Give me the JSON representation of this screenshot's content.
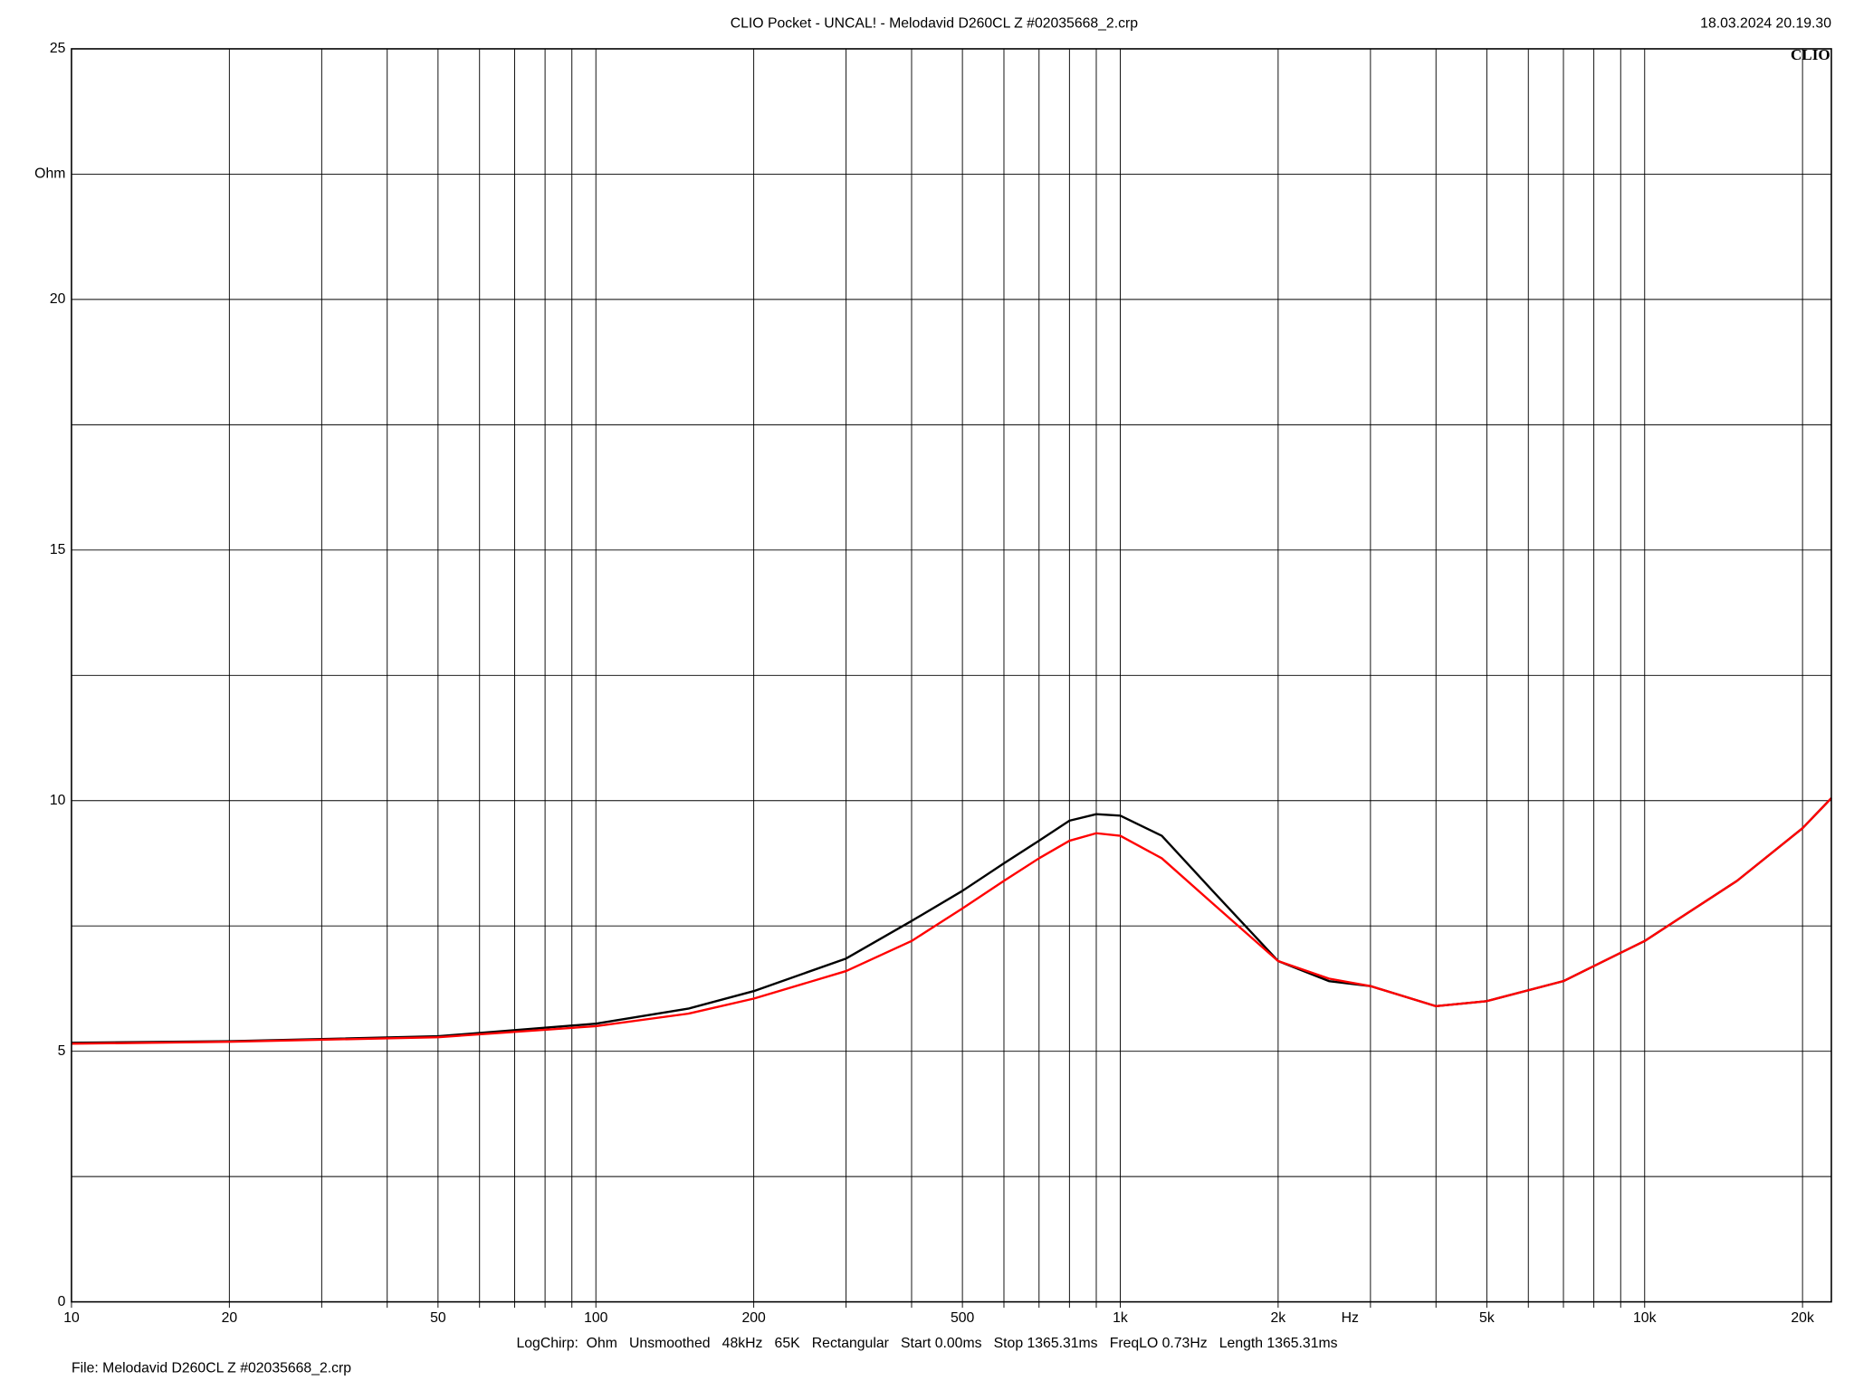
{
  "chart_data": {
    "type": "line",
    "title": "CLIO Pocket - UNCAL! - Melodavid D260CL Z #02035668_2.crp",
    "timestamp": "18.03.2024 20.19.30",
    "logo": "CLIO",
    "y_label": "Ohm",
    "x_label": "Hz",
    "settings_line": "LogChirp:  Ohm   Unsmoothed   48kHz   65K   Rectangular   Start 0.00ms   Stop 1365.31ms   FreqLO 0.73Hz   Length 1365.31ms",
    "file_line": "File: Melodavid D260CL Z #02035668_2.crp",
    "x_log": true,
    "grid": true,
    "xlim": [
      10,
      22700
    ],
    "ylim": [
      0,
      25
    ],
    "xticks": [
      10,
      20,
      50,
      100,
      200,
      500,
      {
        "value": 1000,
        "label": "1k"
      },
      {
        "value": 2000,
        "label": "2k"
      },
      {
        "value": 5000,
        "label": "5k"
      },
      {
        "value": 10000,
        "label": "10k"
      },
      {
        "value": 20000,
        "label": "20k"
      }
    ],
    "minor_xticks": [
      30,
      40,
      60,
      70,
      80,
      90,
      300,
      400,
      600,
      700,
      800,
      900,
      3000,
      4000,
      6000,
      7000,
      8000,
      9000
    ],
    "yticks": [
      0,
      5,
      10,
      15,
      20,
      25
    ],
    "minor_yticks": [
      2.5,
      7.5,
      12.5,
      17.5,
      22.5
    ],
    "x": [
      10,
      20,
      50,
      100,
      150,
      200,
      300,
      400,
      500,
      600,
      700,
      800,
      900,
      1000,
      1200,
      1500,
      2000,
      2500,
      3000,
      4000,
      5000,
      7000,
      10000,
      15000,
      20000,
      22700
    ],
    "series": [
      {
        "color": "#000000",
        "values": [
          5.17,
          5.2,
          5.3,
          5.55,
          5.85,
          6.2,
          6.85,
          7.6,
          8.2,
          8.75,
          9.2,
          9.6,
          9.73,
          9.7,
          9.3,
          8.2,
          6.8,
          6.4,
          6.3,
          5.9,
          6.0,
          6.4,
          7.2,
          8.4,
          9.45,
          10.05
        ]
      },
      {
        "color": "#ff0000",
        "values": [
          5.15,
          5.19,
          5.28,
          5.5,
          5.75,
          6.05,
          6.6,
          7.2,
          7.85,
          8.4,
          8.85,
          9.2,
          9.35,
          9.3,
          8.85,
          7.95,
          6.8,
          6.45,
          6.3,
          5.9,
          6.0,
          6.4,
          7.2,
          8.4,
          9.45,
          10.05
        ]
      }
    ]
  }
}
